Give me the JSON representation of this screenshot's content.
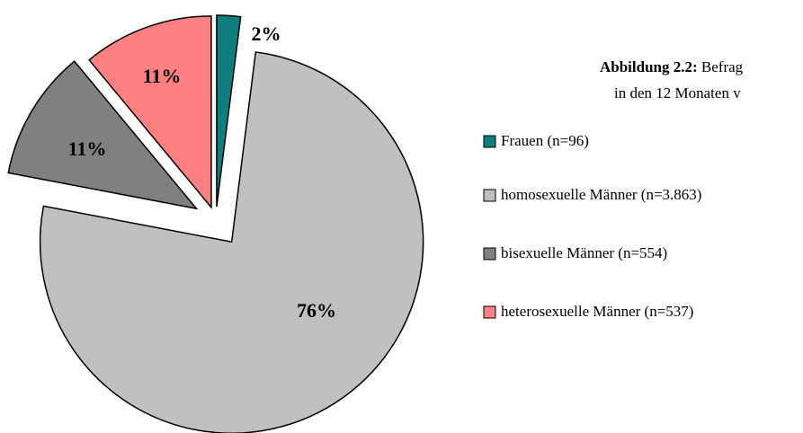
{
  "chart_data": {
    "type": "pie",
    "title_label": "Abbildung 2.2:",
    "title": "Befrag",
    "subtitle": "in den 12 Monaten v",
    "categories": [
      "Frauen (n=96)",
      "homosexuelle Männer (n=3.863)",
      "bisexuelle Männer (n=554)",
      "heterosexuelle Männer (n=537)"
    ],
    "values": [
      2,
      76,
      11,
      11
    ],
    "value_labels": [
      "2%",
      "76%",
      "11%",
      "11%"
    ],
    "colors": [
      "#0e7f7f",
      "#c0c0c0",
      "#808080",
      "#ff8080"
    ]
  }
}
